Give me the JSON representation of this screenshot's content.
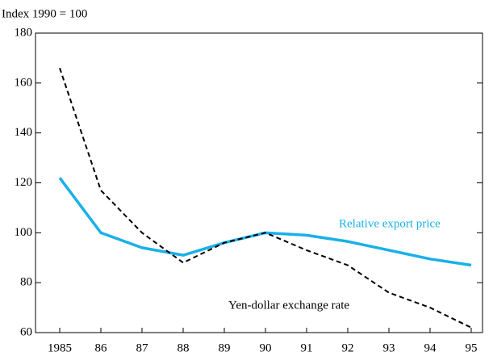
{
  "chart_data": {
    "type": "line",
    "y_axis_label": "Index 1990 = 100",
    "categories": [
      "1985",
      "86",
      "87",
      "88",
      "89",
      "90",
      "91",
      "92",
      "93",
      "94",
      "95"
    ],
    "series": [
      {
        "name": "Relative export price",
        "color": "#1ab0e8",
        "style": "solid",
        "values": [
          122,
          100,
          94,
          91,
          96,
          100,
          99,
          96.5,
          93,
          89.5,
          87
        ]
      },
      {
        "name": "Yen-dollar exchange rate",
        "color": "#000000",
        "style": "dashed",
        "values": [
          166,
          117,
          100,
          88,
          96,
          100,
          93,
          87,
          76,
          70,
          62
        ]
      }
    ],
    "ylim": [
      60,
      180
    ],
    "yticks": [
      60,
      80,
      100,
      120,
      140,
      160,
      180
    ],
    "grid": false
  }
}
